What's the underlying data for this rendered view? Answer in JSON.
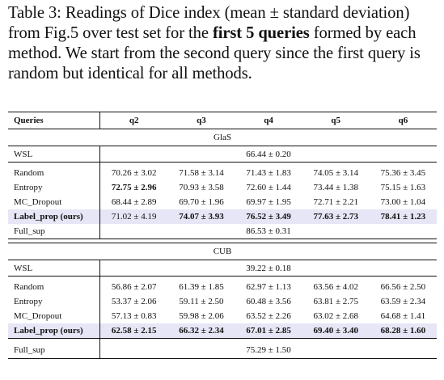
{
  "caption": {
    "prefix": "Table 3: Readings of Dice index (mean ± standard deviation) from Fig.5 over test set for the ",
    "bold": "first 5 queries",
    "suffix": " formed by each method. We start from the second query since the first query is random but identical for all methods."
  },
  "header": {
    "queries": "Queries",
    "q2": "q2",
    "q3": "q3",
    "q4": "q4",
    "q5": "q5",
    "q6": "q6"
  },
  "glas": {
    "title": "GlaS",
    "wsl_label": "WSL",
    "wsl_value": "66.44 ± 0.20",
    "rows": [
      {
        "label": "Random",
        "values": [
          "70.26 ± 3.02",
          "71.58 ± 3.14",
          "71.43 ± 1.83",
          "74.05 ± 3.14",
          "75.36 ± 3.45"
        ]
      },
      {
        "label": "Entropy",
        "values": [
          "72.75 ± 2.96",
          "70.93 ± 3.58",
          "72.60 ± 1.44",
          "73.44 ± 1.38",
          "75.15 ± 1.63"
        ]
      },
      {
        "label": "MC_Dropout",
        "values": [
          "68.44 ± 2.89",
          "69.70 ± 1.96",
          "69.97 ± 1.95",
          "72.71 ± 2.21",
          "73.00 ± 1.04"
        ]
      },
      {
        "label": "Label_prop (ours)",
        "values": [
          "71.02 ± 4.19",
          "74.07 ± 3.93",
          "76.52 ± 3.49",
          "77.63 ± 2.73",
          "78.41 ± 1.23"
        ]
      }
    ],
    "full_label": "Full_sup",
    "full_value": "86.53 ± 0.31"
  },
  "cub": {
    "title": "CUB",
    "wsl_label": "WSL",
    "wsl_value": "39.22 ± 0.18",
    "rows": [
      {
        "label": "Random",
        "values": [
          "56.86 ± 2.07",
          "61.39 ± 1.85",
          "62.97 ± 1.13",
          "63.56 ± 4.02",
          "66.56 ± 2.50"
        ]
      },
      {
        "label": "Entropy",
        "values": [
          "53.37 ± 2.06",
          "59.11 ± 2.50",
          "60.48 ± 3.56",
          "63.81 ± 2.75",
          "63.59 ± 2.34"
        ]
      },
      {
        "label": "MC_Dropout",
        "values": [
          "57.13 ± 0.83",
          "59.98 ± 2.06",
          "63.52 ± 2.26",
          "63.02 ± 2.68",
          "64.68 ± 1.41"
        ]
      },
      {
        "label": "Label_prop (ours)",
        "values": [
          "62.58 ± 2.15",
          "66.32 ± 2.34",
          "67.01 ± 2.85",
          "69.40 ± 3.40",
          "68.28 ± 1.60"
        ]
      }
    ],
    "full_label": "Full_sup",
    "full_value": "75.29 ± 1.50"
  }
}
